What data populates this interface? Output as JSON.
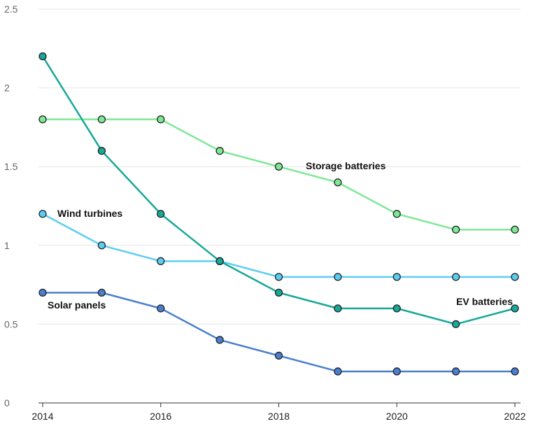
{
  "chart_data": {
    "type": "line",
    "title": "",
    "xlabel": "",
    "ylabel": "",
    "x": [
      2014,
      2015,
      2016,
      2017,
      2018,
      2019,
      2020,
      2021,
      2022
    ],
    "xticks": [
      "2014",
      "2016",
      "2018",
      "2020",
      "2022"
    ],
    "yticks": [
      "0",
      "0.5",
      "1",
      "1.5",
      "2",
      "2.5"
    ],
    "xlim": [
      2014,
      2022
    ],
    "ylim": [
      0,
      2.5
    ],
    "grid": "horizontal",
    "series": [
      {
        "key": "storage",
        "name": "Storage batteries",
        "color": "#7ee896",
        "values": [
          1.8,
          1.8,
          1.8,
          1.6,
          1.5,
          1.4,
          1.2,
          1.1,
          1.1
        ]
      },
      {
        "key": "wind",
        "name": "Wind turbines",
        "color": "#5ccdf2",
        "values": [
          1.2,
          1.0,
          0.9,
          0.9,
          0.8,
          0.8,
          0.8,
          0.8,
          0.8
        ]
      },
      {
        "key": "ev",
        "name": "EV batteries",
        "color": "#17a898",
        "values": [
          2.2,
          1.6,
          1.2,
          0.9,
          0.7,
          0.6,
          0.6,
          0.5,
          0.6
        ]
      },
      {
        "key": "solar",
        "name": "Solar panels",
        "color": "#4a7fd0",
        "values": [
          0.7,
          0.7,
          0.6,
          0.4,
          0.3,
          0.2,
          0.2,
          0.2,
          0.2
        ]
      }
    ]
  }
}
